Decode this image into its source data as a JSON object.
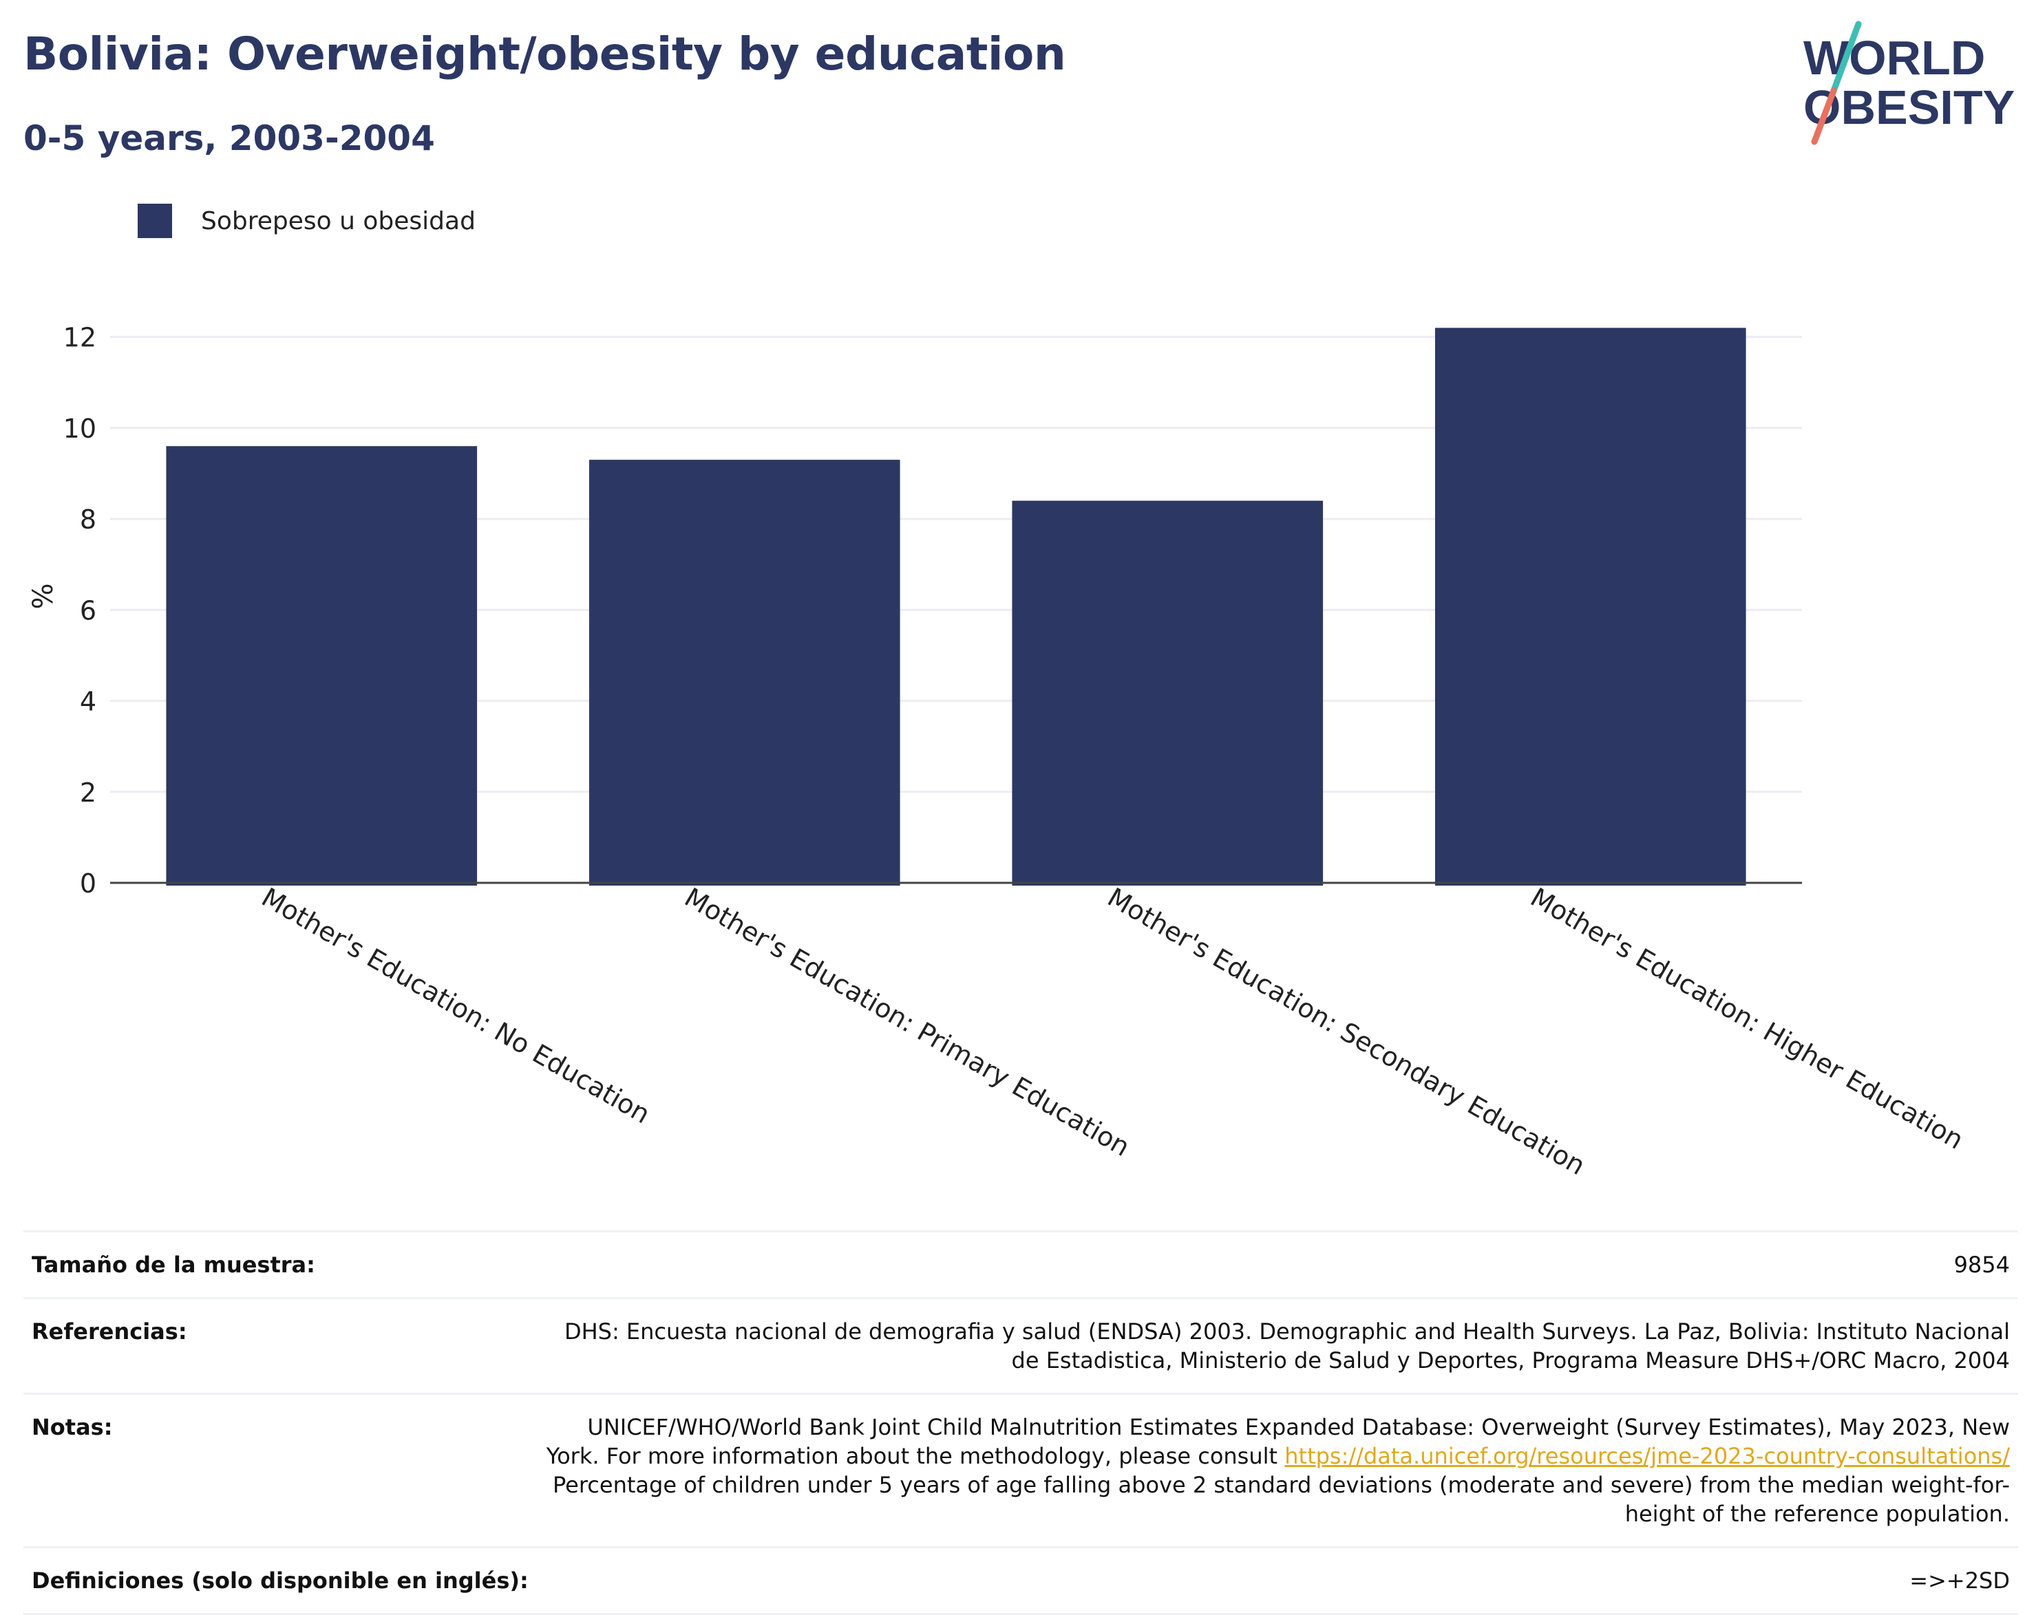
{
  "header": {
    "title": "Bolivia: Overweight/obesity by education",
    "subtitle": "0-5 years, 2003-2004",
    "logo_line1": "WORLD",
    "logo_line2": "OBESITY"
  },
  "colors": {
    "bar": "#2c3863",
    "title": "#2c3863",
    "link": "#e0a81e",
    "logo_teal": "#3dbdb5",
    "logo_coral": "#e9705f"
  },
  "chart_data": {
    "type": "bar",
    "categories": [
      "Mother's Education: No Education",
      "Mother's Education: Primary Education",
      "Mother's Education: Secondary Education",
      "Mother's Education: Higher Education"
    ],
    "series": [
      {
        "name": "Sobrepeso u obesidad",
        "values": [
          9.6,
          9.3,
          8.4,
          12.2
        ]
      }
    ],
    "ylabel": "%",
    "ylim": [
      0,
      12.6
    ],
    "yticks": [
      0,
      2,
      4,
      6,
      8,
      10,
      12
    ],
    "grid": true,
    "legend": "top-left"
  },
  "info": {
    "sample_label": "Tamaño de la muestra:",
    "sample_value": "9854",
    "references_label": "Referencias:",
    "references_value": "DHS: Encuesta nacional de demografia y salud (ENDSA) 2003. Demographic and Health Surveys. La Paz, Bolivia: Instituto Nacional de Estadistica, Ministerio de Salud y Deportes, Programa Measure DHS+/ORC Macro, 2004",
    "notes_label": "Notas:",
    "notes_text1": "UNICEF/WHO/World Bank Joint Child Malnutrition Estimates Expanded Database: Overweight (Survey Estimates), May 2023, New York. For more information about the methodology, please consult ",
    "notes_link": "https://data.unicef.org/resources/jme-2023-country-consultations/",
    "notes_text2": " Percentage of children under 5 years of age falling above 2 standard deviations (moderate and severe) from the median weight-for-height of the reference population.",
    "definitions_label": "Definiciones (solo disponible en inglés):",
    "definitions_value": "=>+2SD"
  }
}
